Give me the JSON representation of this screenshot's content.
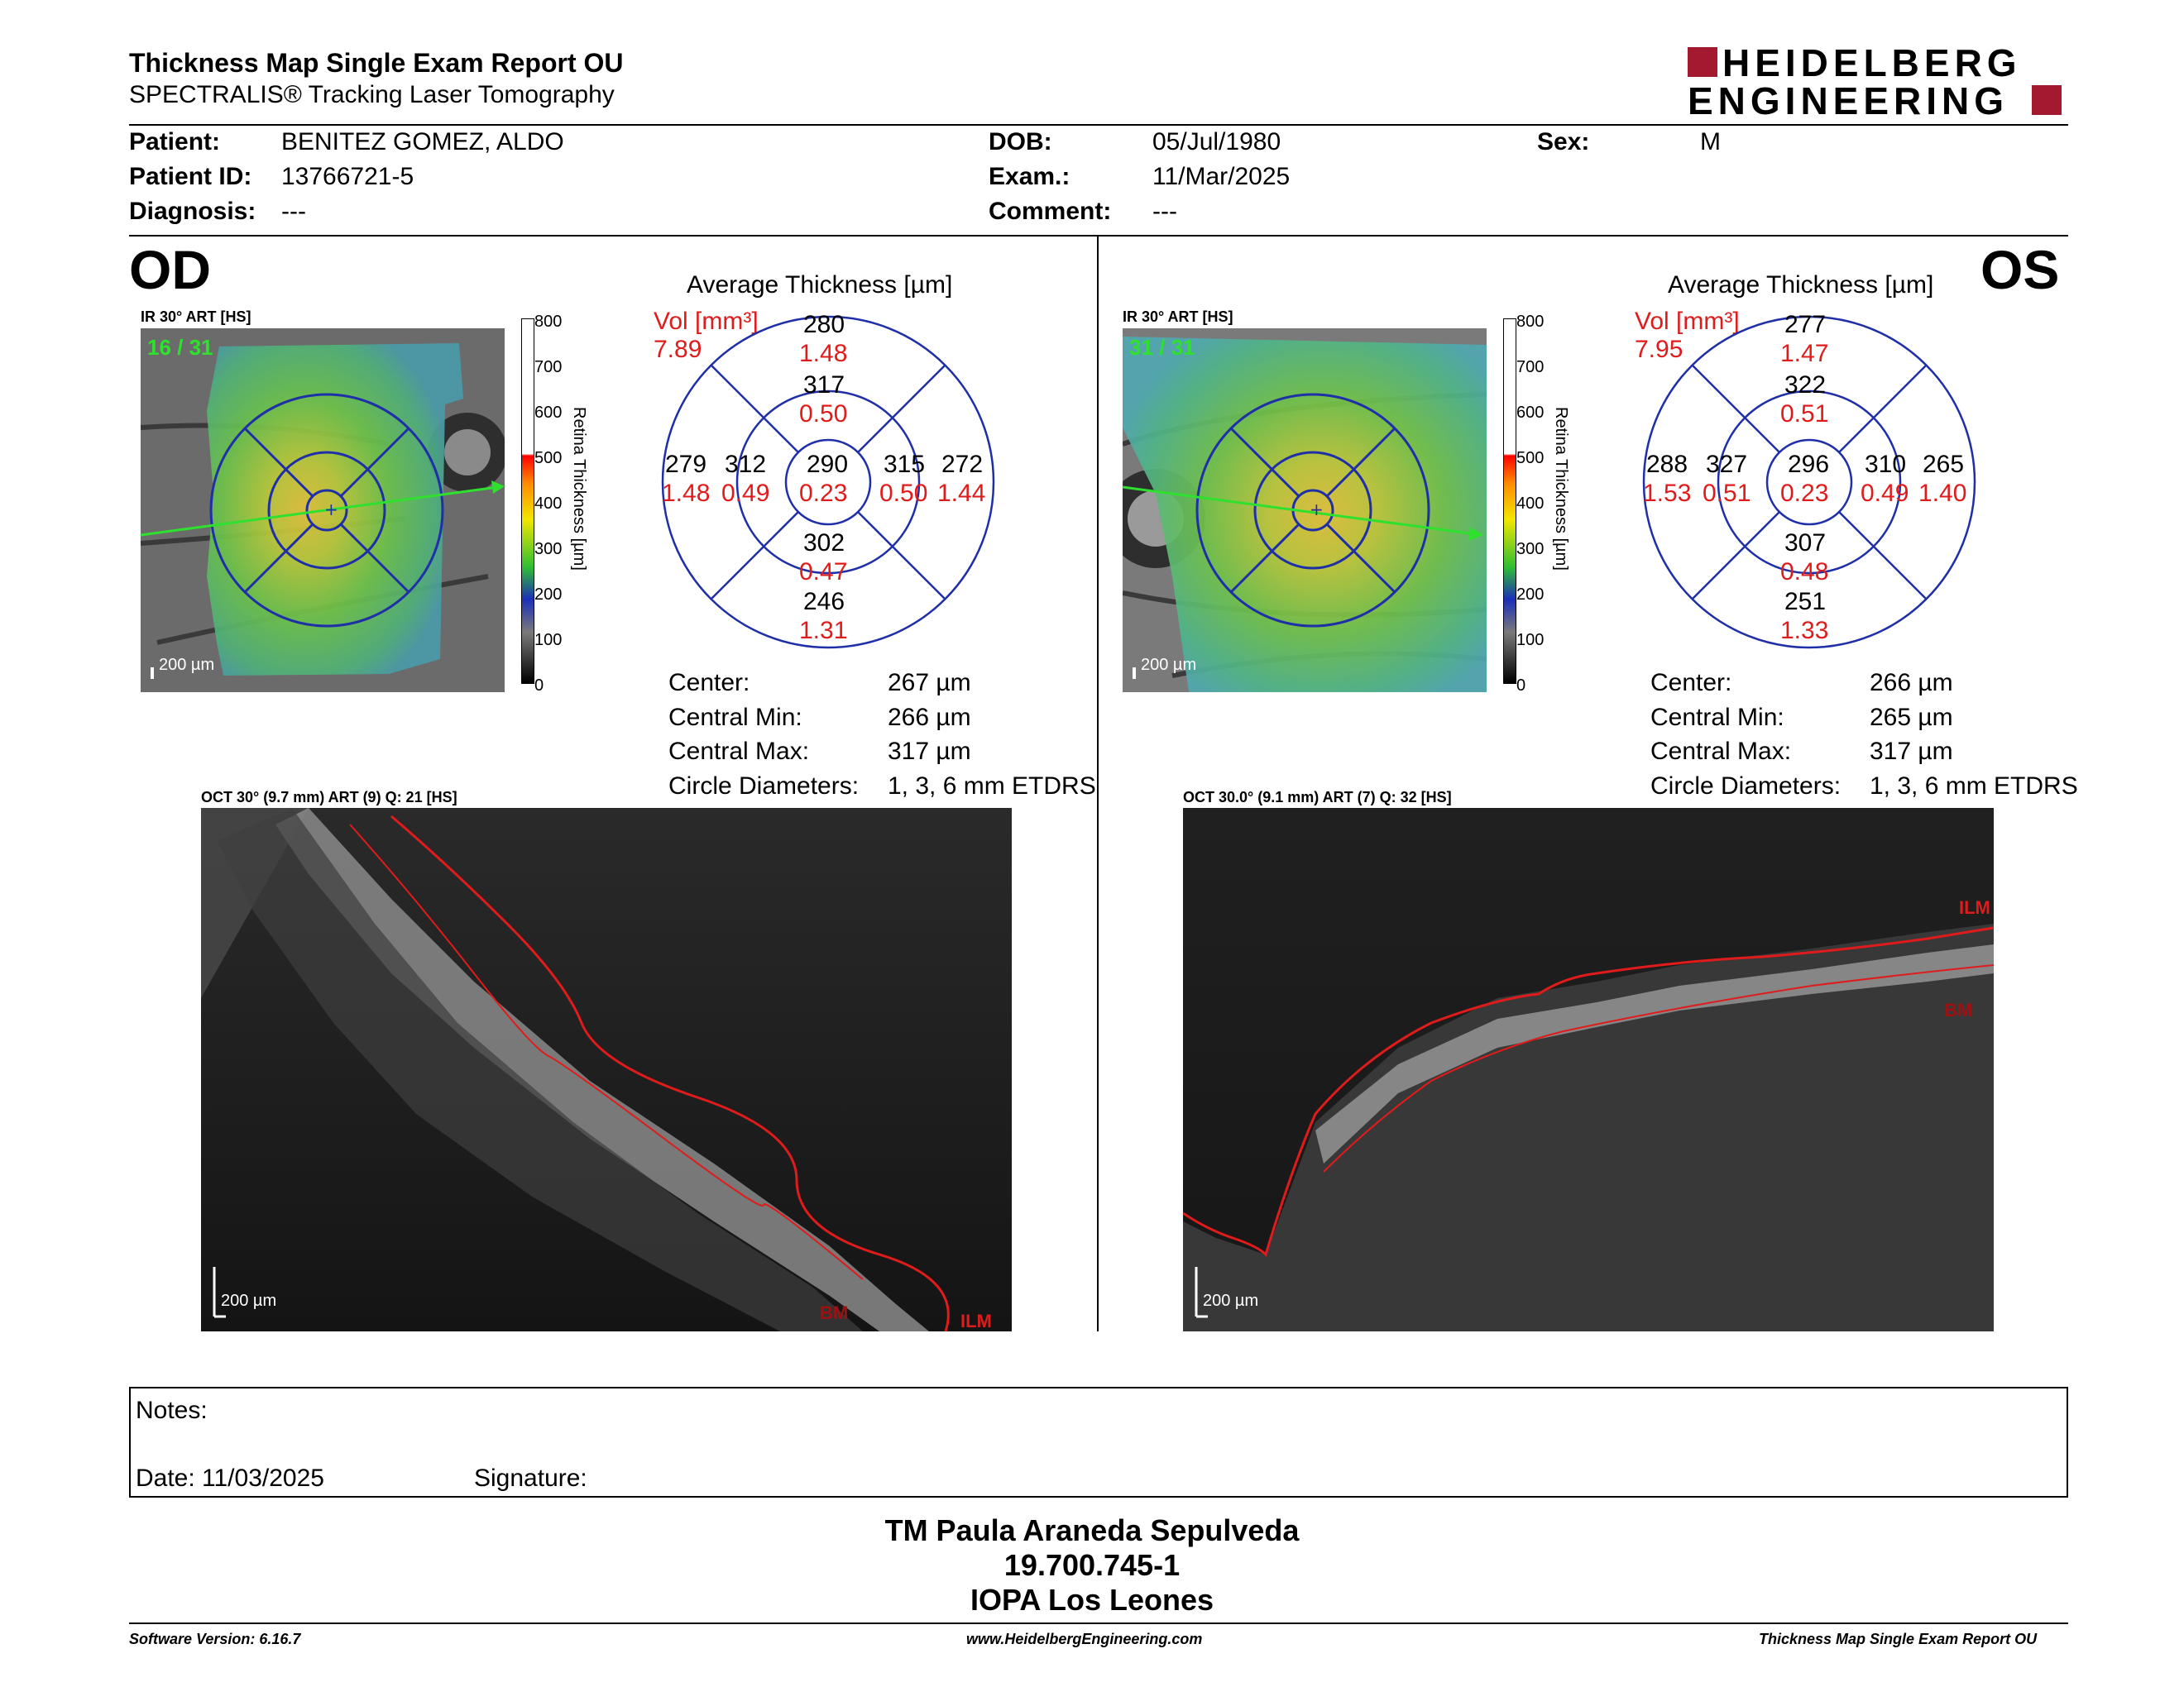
{
  "header": {
    "title": "Thickness Map Single Exam Report OU",
    "subtitle": "SPECTRALIS® Tracking Laser Tomography",
    "logo_line1": "HEIDELBERG",
    "logo_line2": "ENGINEERING",
    "brand_color": "#a3192f"
  },
  "patient": {
    "patient_label": "Patient:",
    "patient_value": "BENITEZ GOMEZ, ALDO",
    "id_label": "Patient ID:",
    "id_value": "13766721-5",
    "diagnosis_label": "Diagnosis:",
    "diagnosis_value": "---",
    "dob_label": "DOB:",
    "dob_value": "05/Jul/1980",
    "exam_label": "Exam.:",
    "exam_value": "11/Mar/2025",
    "comment_label": "Comment:",
    "comment_value": "---",
    "sex_label": "Sex:",
    "sex_value": "M"
  },
  "od": {
    "eye": "OD",
    "ir_label": "IR 30° ART [HS]",
    "frame": "16 / 31",
    "scale": "200 µm",
    "chart_title": "Average Thickness [µm]",
    "vol_label": "Vol [mm³]",
    "vol_total": "7.89",
    "sectors": {
      "outer_sup": {
        "t": "280",
        "v": "1.48"
      },
      "inner_sup": {
        "t": "317",
        "v": "0.50"
      },
      "outer_temp": {
        "t": "279",
        "v": "1.48"
      },
      "inner_temp": {
        "t": "312",
        "v": "0.49"
      },
      "center": {
        "t": "290",
        "v": "0.23"
      },
      "inner_nasal": {
        "t": "315",
        "v": "0.50"
      },
      "outer_nasal": {
        "t": "272",
        "v": "1.44"
      },
      "inner_inf": {
        "t": "302",
        "v": "0.47"
      },
      "outer_inf": {
        "t": "246",
        "v": "1.31"
      }
    },
    "stats": {
      "center_label": "Center:",
      "center_value": "267 µm",
      "min_label": "Central Min:",
      "min_value": "266 µm",
      "max_label": "Central Max:",
      "max_value": "317 µm",
      "diam_label": "Circle Diameters:",
      "diam_value": "1, 3, 6 mm ETDRS"
    },
    "oct_label": "OCT 30° (9.7 mm) ART (9) Q: 21 [HS]",
    "oct_scale": "200 µm",
    "ilm": "ILM",
    "bm": "BM"
  },
  "os": {
    "eye": "OS",
    "ir_label": "IR 30° ART [HS]",
    "frame": "31 / 31",
    "scale": "200 µm",
    "chart_title": "Average Thickness [µm]",
    "vol_label": "Vol [mm³]",
    "vol_total": "7.95",
    "sectors": {
      "outer_sup": {
        "t": "277",
        "v": "1.47"
      },
      "inner_sup": {
        "t": "322",
        "v": "0.51"
      },
      "outer_temp": {
        "t": "288",
        "v": "1.53"
      },
      "inner_temp": {
        "t": "327",
        "v": "0.51"
      },
      "center": {
        "t": "296",
        "v": "0.23"
      },
      "inner_nasal": {
        "t": "310",
        "v": "0.49"
      },
      "outer_nasal": {
        "t": "265",
        "v": "1.40"
      },
      "inner_inf": {
        "t": "307",
        "v": "0.48"
      },
      "outer_inf": {
        "t": "251",
        "v": "1.33"
      }
    },
    "stats": {
      "center_label": "Center:",
      "center_value": "266 µm",
      "min_label": "Central Min:",
      "min_value": "265 µm",
      "max_label": "Central Max:",
      "max_value": "317 µm",
      "diam_label": "Circle Diameters:",
      "diam_value": "1, 3, 6 mm ETDRS"
    },
    "oct_label": "OCT 30.0° (9.1 mm) ART (7) Q: 32 [HS]",
    "oct_scale": "200 µm",
    "ilm": "ILM",
    "bm": "BM"
  },
  "colorbar": {
    "title": "Retina Thickness [µm]",
    "ticks": [
      "800",
      "700",
      "600",
      "500",
      "400",
      "300",
      "200",
      "100",
      "0"
    ]
  },
  "notes": {
    "notes_label": "Notes:",
    "date_label": "Date: 11/03/2025",
    "signature_label": "Signature:"
  },
  "signature_block": {
    "name": "TM Paula Araneda Sepulveda",
    "rut": "19.700.745-1",
    "institution": "IOPA Los Leones"
  },
  "footer": {
    "software": "Software Version: 6.16.7",
    "website": "www.HeidelbergEngineering.com",
    "report": "Thickness Map Single Exam Report OU"
  },
  "colors": {
    "sector_grid": "#1f2fa8",
    "volume_red": "#e01b1b",
    "ilm_red": "#e01b1b",
    "frame_green": "#2fe02f"
  }
}
